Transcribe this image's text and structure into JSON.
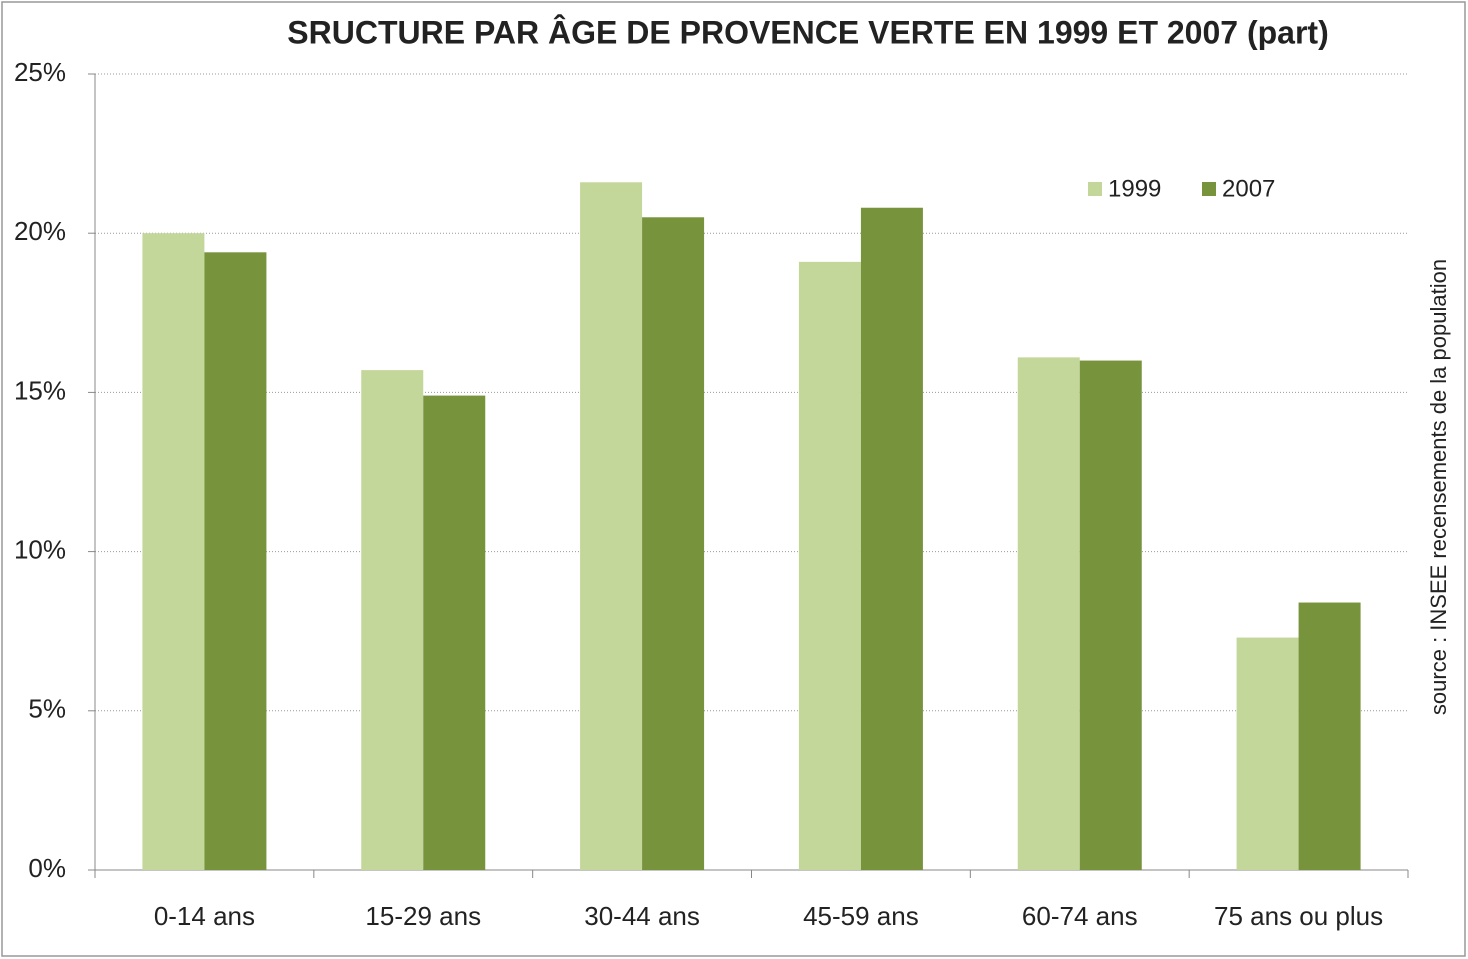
{
  "chart_data": {
    "type": "bar",
    "title": "SRUCTURE PAR ÂGE DE PROVENCE VERTE EN 1999 ET 2007 (part)",
    "source": "source : INSEE recensements de la population",
    "categories": [
      "0-14 ans",
      "15-29 ans",
      "30-44 ans",
      "45-59 ans",
      "60-74 ans",
      "75 ans ou plus"
    ],
    "series": [
      {
        "name": "1999",
        "color": "#c4d79b",
        "values": [
          20.0,
          15.7,
          21.6,
          19.1,
          16.1,
          7.3
        ]
      },
      {
        "name": "2007",
        "color": "#77933c",
        "values": [
          19.4,
          14.9,
          20.5,
          20.8,
          16.0,
          8.4
        ]
      }
    ],
    "ylim": [
      0,
      25
    ],
    "yticks": [
      {
        "value": 0,
        "label": "0%"
      },
      {
        "value": 5,
        "label": "5%"
      },
      {
        "value": 10,
        "label": "10%"
      },
      {
        "value": 15,
        "label": "15%"
      },
      {
        "value": 20,
        "label": "20%"
      },
      {
        "value": 25,
        "label": "25%"
      }
    ],
    "grid": true,
    "legend": "top-right"
  }
}
